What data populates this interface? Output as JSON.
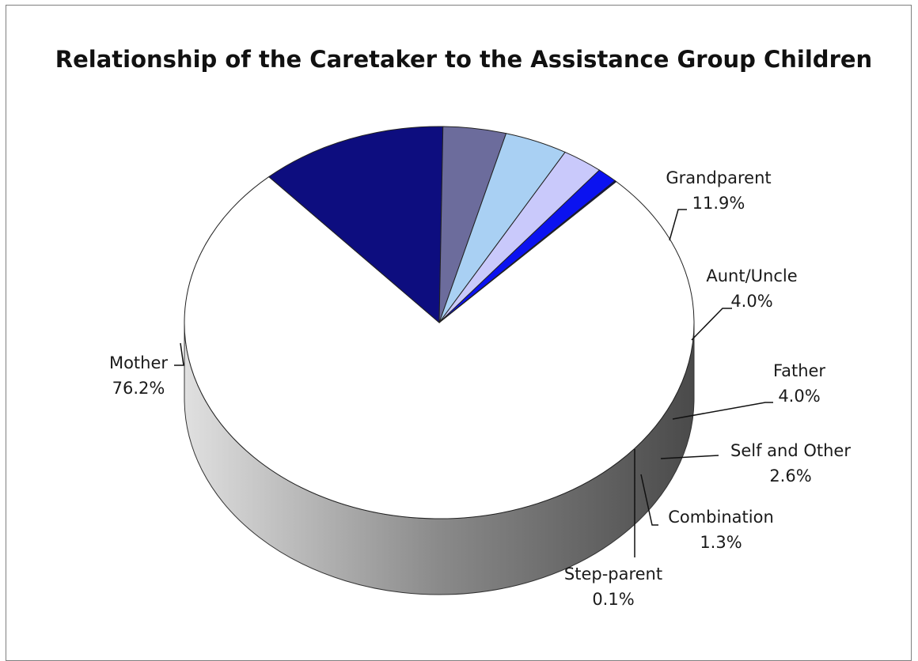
{
  "chart_data": {
    "type": "pie",
    "title": "Relationship of the Caretaker to the Assistance Group Children",
    "slices": [
      {
        "label": "Mother",
        "value": 76.2,
        "display": "76.2%",
        "color": "#ffffff"
      },
      {
        "label": "Grandparent",
        "value": 11.9,
        "display": "11.9%",
        "color": "#0d0d7f"
      },
      {
        "label": "Aunt/Uncle",
        "value": 4.0,
        "display": "4.0%",
        "color": "#6c6c9c"
      },
      {
        "label": "Father",
        "value": 4.0,
        "display": "4.0%",
        "color": "#a9d0f3"
      },
      {
        "label": "Self and Other",
        "value": 2.6,
        "display": "2.6%",
        "color": "#c9c9fb"
      },
      {
        "label": "Combination",
        "value": 1.3,
        "display": "1.3%",
        "color": "#0b12f0"
      },
      {
        "label": "Step-parent",
        "value": 0.1,
        "display": "0.1%",
        "color": "#0a0a66"
      }
    ],
    "legend": "none",
    "style": "3d"
  }
}
